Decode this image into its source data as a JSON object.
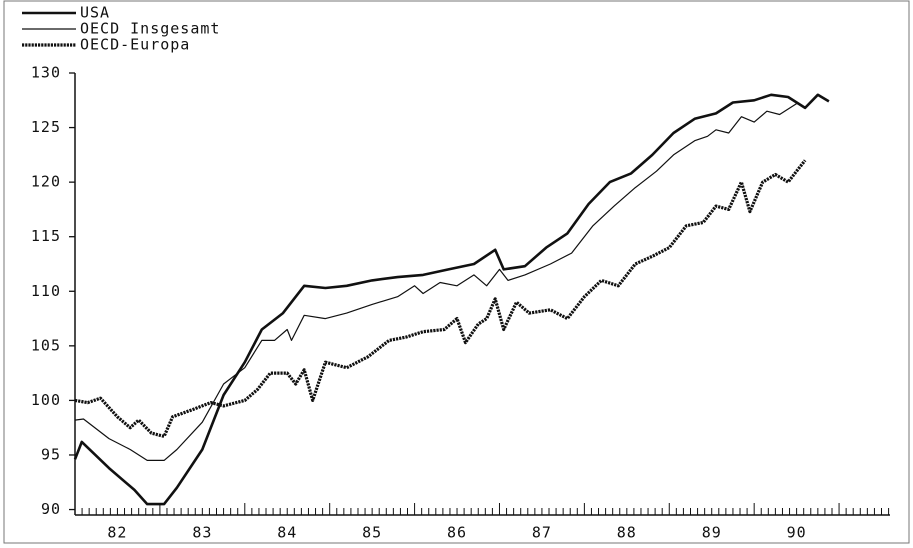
{
  "chart_data": {
    "type": "line",
    "legend": "upper left",
    "xlim": [
      82,
      91.6
    ],
    "xticks": [
      {
        "value": 82.5,
        "label": "82"
      },
      {
        "value": 83.5,
        "label": "83"
      },
      {
        "value": 84.5,
        "label": "84"
      },
      {
        "value": 85.5,
        "label": "85"
      },
      {
        "value": 86.5,
        "label": "86"
      },
      {
        "value": 87.5,
        "label": "87"
      },
      {
        "value": 88.5,
        "label": "88"
      },
      {
        "value": 89.5,
        "label": "89"
      },
      {
        "value": 90.5,
        "label": "90"
      }
    ],
    "ylim": [
      89.5,
      130
    ],
    "yticks": [
      90,
      95,
      100,
      105,
      110,
      115,
      120,
      125,
      130
    ],
    "grid": false,
    "series": [
      {
        "name": "USA",
        "color": "#111111",
        "style": "thick",
        "x": [
          82.0,
          82.08,
          82.4,
          82.7,
          82.85,
          83.05,
          83.2,
          83.5,
          83.75,
          84.0,
          84.2,
          84.45,
          84.7,
          84.95,
          85.2,
          85.5,
          85.8,
          86.1,
          86.4,
          86.7,
          86.95,
          87.05,
          87.3,
          87.55,
          87.8,
          88.05,
          88.3,
          88.55,
          88.8,
          89.05,
          89.3,
          89.55,
          89.75,
          90.0,
          90.2,
          90.4,
          90.6,
          90.75,
          90.88
        ],
        "values": [
          94.6,
          96.2,
          93.8,
          91.8,
          90.5,
          90.5,
          92,
          95.5,
          100.5,
          103.5,
          106.5,
          108,
          110.5,
          110.3,
          110.5,
          111,
          111.3,
          111.5,
          112,
          112.5,
          113.8,
          112,
          112.3,
          114,
          115.3,
          118,
          120,
          120.8,
          122.5,
          124.5,
          125.8,
          126.3,
          127.3,
          127.5,
          128,
          127.8,
          126.8,
          128,
          127.4
        ]
      },
      {
        "name": "OECD Insgesamt",
        "color": "#111111",
        "style": "thin",
        "x": [
          82.0,
          82.1,
          82.4,
          82.65,
          82.85,
          83.05,
          83.2,
          83.5,
          83.75,
          84.0,
          84.2,
          84.35,
          84.5,
          84.55,
          84.7,
          84.95,
          85.2,
          85.5,
          85.8,
          86.0,
          86.1,
          86.3,
          86.5,
          86.7,
          86.85,
          87.0,
          87.1,
          87.3,
          87.6,
          87.85,
          88.1,
          88.35,
          88.6,
          88.85,
          89.05,
          89.3,
          89.45,
          89.55,
          89.7,
          89.85,
          90.0,
          90.15,
          90.3,
          90.5
        ],
        "values": [
          98.2,
          98.3,
          96.5,
          95.5,
          94.5,
          94.5,
          95.5,
          98,
          101.5,
          103,
          105.5,
          105.5,
          106.5,
          105.5,
          107.8,
          107.5,
          108,
          108.8,
          109.5,
          110.5,
          109.8,
          110.8,
          110.5,
          111.5,
          110.5,
          112,
          111,
          111.5,
          112.5,
          113.5,
          116,
          117.8,
          119.5,
          121,
          122.5,
          123.8,
          124.2,
          124.8,
          124.5,
          126,
          125.5,
          126.5,
          126.2,
          127.2
        ]
      },
      {
        "name": "OECD-Europa",
        "color": "#111111",
        "style": "dotted",
        "x": [
          82.0,
          82.15,
          82.3,
          82.5,
          82.65,
          82.75,
          82.9,
          83.05,
          83.15,
          83.4,
          83.6,
          83.75,
          84.0,
          84.15,
          84.3,
          84.5,
          84.6,
          84.7,
          84.8,
          84.95,
          85.2,
          85.45,
          85.7,
          85.9,
          86.1,
          86.35,
          86.5,
          86.6,
          86.75,
          86.85,
          86.95,
          87.05,
          87.2,
          87.35,
          87.6,
          87.8,
          88.0,
          88.2,
          88.4,
          88.6,
          88.8,
          89.0,
          89.2,
          89.4,
          89.55,
          89.7,
          89.85,
          89.95,
          90.1,
          90.25,
          90.4,
          90.6
        ],
        "values": [
          100,
          99.8,
          100.2,
          98.5,
          97.5,
          98.2,
          97,
          96.7,
          98.5,
          99.2,
          99.8,
          99.5,
          100,
          101,
          102.5,
          102.5,
          101.5,
          102.8,
          100,
          103.5,
          103,
          104,
          105.5,
          105.8,
          106.3,
          106.5,
          107.5,
          105.3,
          107,
          107.5,
          109.3,
          106.5,
          109,
          108,
          108.3,
          107.5,
          109.5,
          111,
          110.5,
          112.5,
          113.2,
          114,
          116,
          116.3,
          117.8,
          117.5,
          120,
          117.3,
          120,
          120.7,
          120,
          122
        ]
      }
    ]
  }
}
